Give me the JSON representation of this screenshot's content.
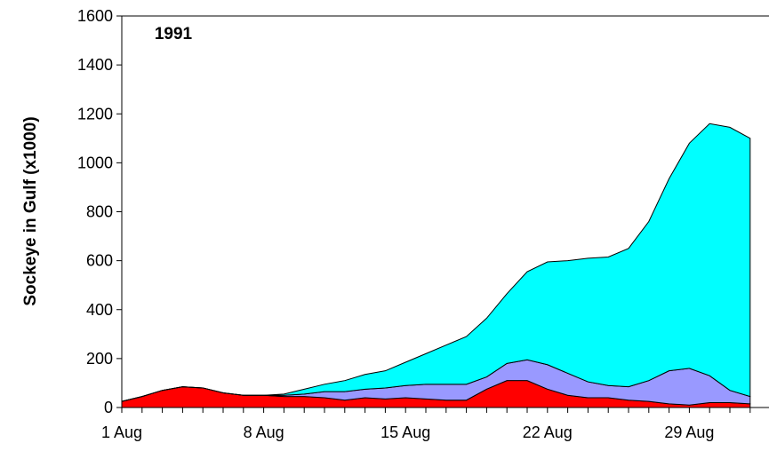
{
  "chart_data": {
    "type": "stacked-area",
    "annotation": "1991",
    "y_label": "Sockeye in Gulf (x1000)",
    "categories": [
      "1 Aug",
      null,
      null,
      null,
      null,
      null,
      null,
      "8 Aug",
      null,
      null,
      null,
      null,
      null,
      null,
      "15 Aug",
      null,
      null,
      null,
      null,
      null,
      null,
      "22 Aug",
      null,
      null,
      null,
      null,
      null,
      null,
      "29 Aug",
      null,
      null,
      null
    ],
    "series": [
      {
        "color": "#ff0000",
        "values": [
          25,
          45,
          70,
          85,
          80,
          60,
          50,
          50,
          45,
          45,
          40,
          30,
          40,
          35,
          40,
          35,
          30,
          30,
          75,
          110,
          110,
          75,
          50,
          40,
          40,
          30,
          25,
          15,
          10,
          20,
          20,
          15
        ]
      },
      {
        "color": "#9999ff",
        "values": [
          0,
          0,
          0,
          0,
          0,
          0,
          0,
          0,
          5,
          10,
          25,
          35,
          35,
          45,
          50,
          60,
          65,
          65,
          50,
          70,
          85,
          100,
          90,
          65,
          50,
          55,
          85,
          135,
          150,
          110,
          50,
          30
        ]
      },
      {
        "color": "#00ffff",
        "values": [
          0,
          0,
          0,
          0,
          0,
          0,
          0,
          0,
          5,
          20,
          30,
          45,
          60,
          70,
          95,
          125,
          160,
          195,
          240,
          285,
          360,
          420,
          460,
          505,
          525,
          565,
          650,
          785,
          920,
          1030,
          1075,
          1055
        ]
      }
    ],
    "ylim": [
      0,
      1600
    ],
    "yticks": [
      0,
      200,
      400,
      600,
      800,
      1000,
      1200,
      1400,
      1600
    ]
  }
}
